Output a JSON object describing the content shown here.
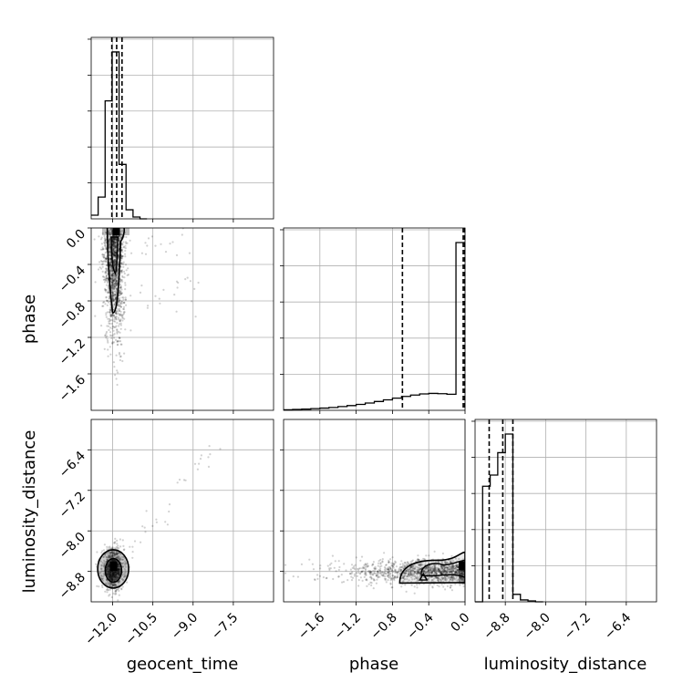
{
  "chart_data": {
    "type": "corner",
    "parameters": [
      "geocent_time",
      "phase",
      "luminosity_distance"
    ],
    "axes": {
      "geocent_time": {
        "range": [
          -12.8,
          -6.0
        ],
        "ticks": [
          "-12.0",
          "-10.5",
          "-9.0",
          "-7.5"
        ],
        "tick_values": [
          -12.0,
          -10.5,
          -9.0,
          -7.5
        ]
      },
      "phase": {
        "range": [
          -2.0,
          0.0
        ],
        "ticks": [
          "-1.6",
          "-1.2",
          "-0.8",
          "-0.4",
          "0.0"
        ],
        "tick_values": [
          -1.6,
          -1.2,
          -0.8,
          -0.4,
          0.0
        ]
      },
      "luminosity_distance": {
        "range": [
          -9.4,
          -5.8
        ],
        "ticks": [
          "-8.8",
          "-8.0",
          "-7.2",
          "-6.4"
        ],
        "tick_values": [
          -8.8,
          -8.0,
          -7.2,
          -6.4
        ]
      }
    },
    "grid": true,
    "histograms": {
      "geocent_time": {
        "bin_edges": [
          -12.8,
          -12.54,
          -12.28,
          -12.02,
          -11.76,
          -11.5,
          -11.24,
          -10.98,
          -10.72
        ],
        "counts": [
          0.02,
          0.12,
          0.65,
          0.92,
          0.3,
          0.05,
          0.01,
          0.0
        ],
        "quantiles": [
          -12.03,
          -11.85,
          -11.65
        ]
      },
      "phase": {
        "bin_edges": [
          -2.0,
          -1.9,
          -1.8,
          -1.7,
          -1.6,
          -1.5,
          -1.4,
          -1.3,
          -1.2,
          -1.1,
          -1.0,
          -0.9,
          -0.8,
          -0.7,
          -0.6,
          -0.5,
          -0.4,
          -0.3,
          -0.2,
          -0.1,
          0.0
        ],
        "counts": [
          0.003,
          0.005,
          0.007,
          0.01,
          0.013,
          0.017,
          0.022,
          0.028,
          0.035,
          0.043,
          0.052,
          0.062,
          0.072,
          0.082,
          0.09,
          0.097,
          0.1,
          0.098,
          0.095,
          0.99
        ],
        "quantiles": [
          -0.69,
          -0.02,
          -0.005
        ]
      },
      "luminosity_distance": {
        "bin_edges": [
          -9.4,
          -9.25,
          -9.1,
          -8.95,
          -8.8,
          -8.65,
          -8.5,
          -8.35,
          -8.2,
          -8.05
        ],
        "counts": [
          0.0,
          0.62,
          0.68,
          0.8,
          0.9,
          0.04,
          0.01,
          0.005,
          0.0
        ],
        "quantiles": [
          -9.12,
          -8.85,
          -8.65
        ]
      }
    },
    "pairs": [
      {
        "x": "geocent_time",
        "y": "phase",
        "peak": [
          -11.95,
          -0.04
        ],
        "scatter_center": [
          -11.85,
          -0.7
        ],
        "note": ""
      },
      {
        "x": "geocent_time",
        "y": "luminosity_distance",
        "peak": [
          -12.0,
          -8.75
        ]
      },
      {
        "x": "phase",
        "y": "luminosity_distance",
        "peak": [
          -0.05,
          -8.78
        ]
      }
    ]
  }
}
